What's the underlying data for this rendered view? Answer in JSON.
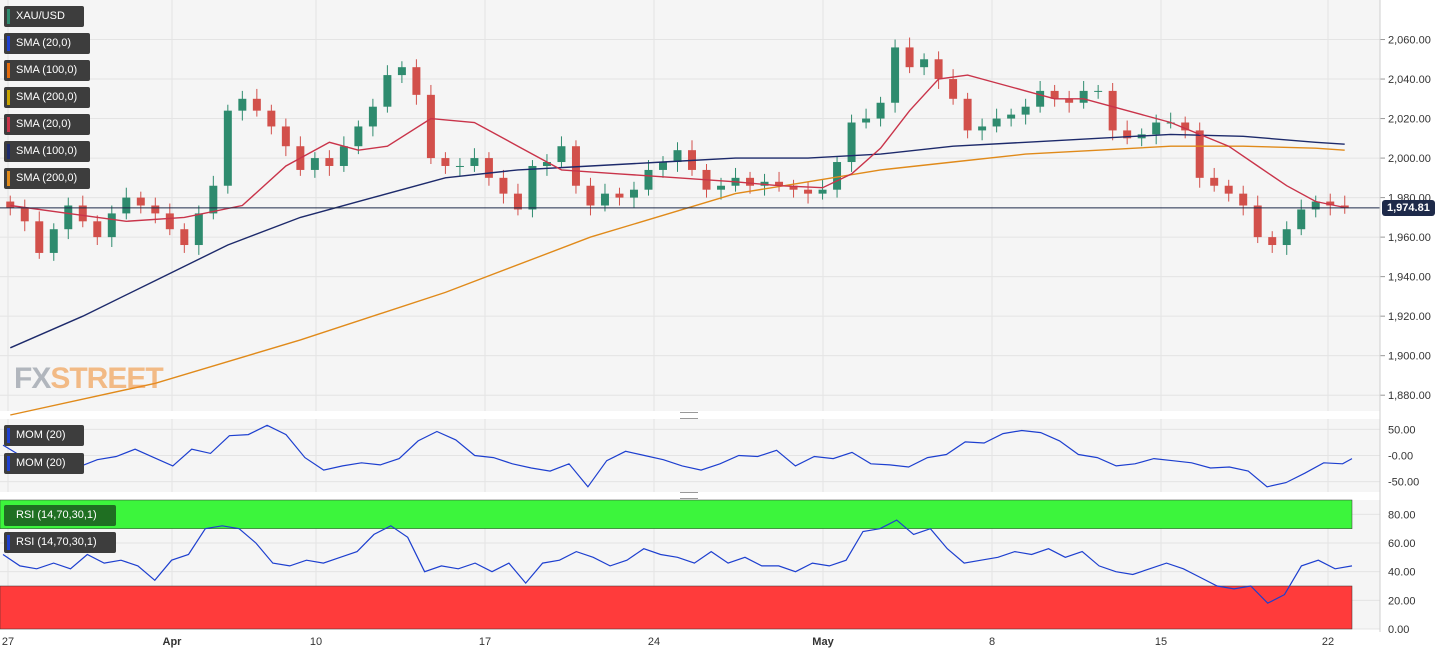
{
  "symbol": "XAU/USD",
  "last_price_label": "1,974.81",
  "watermark": {
    "fx": "FX",
    "street": "STREET"
  },
  "legends": {
    "main": [
      {
        "label": "SMA (20,0)",
        "color": "#1d3fcf"
      },
      {
        "label": "SMA (100,0)",
        "color": "#e36b0c"
      },
      {
        "label": "SMA (200,0)",
        "color": "#c8a400"
      },
      {
        "label": "SMA (20,0)",
        "color": "#c9344a"
      },
      {
        "label": "SMA (100,0)",
        "color": "#1d2a6b"
      },
      {
        "label": "SMA (200,0)",
        "color": "#e08a1a"
      }
    ],
    "mom": [
      {
        "label": "MOM (20)",
        "color": "#1d3fcf"
      },
      {
        "label": "MOM (20)",
        "color": "#1d3fcf"
      }
    ],
    "rsi": [
      {
        "label": "RSI (14,70,30,1)",
        "color": "#1f6f22"
      },
      {
        "label": "RSI (14,70,30,1)",
        "color": "#1d3fcf"
      }
    ]
  },
  "colors": {
    "up": "#2e8b6e",
    "down": "#d2504b",
    "sma20": "#c9344a",
    "sma100": "#1d2a6b",
    "sma200": "#e08a1a",
    "indicator": "#1d3fcf",
    "rsi_overbought_band": "#3cf53c",
    "rsi_oversold_band": "#ff3b3b",
    "price_line": "#1e2a4a"
  },
  "chart_data": {
    "type": "candlestick",
    "title": "XAU/USD",
    "x_tick_labels": [
      "27",
      "Apr",
      "10",
      "17",
      "24",
      "May",
      "8",
      "15",
      "22"
    ],
    "price_axis": {
      "ylim": [
        1872,
        2080
      ],
      "ticks": [
        1880,
        1900,
        1920,
        1940,
        1960,
        1980,
        2000,
        2020,
        2040,
        2060
      ],
      "tick_labels": [
        "1,880.00",
        "1,900.00",
        "1,920.00",
        "1,940.00",
        "1,960.00",
        "1,980.00",
        "2,000.00",
        "2,020.00",
        "2,040.00",
        "2,060.00"
      ]
    },
    "last_price": 1974.81,
    "close_series": [
      [
        0,
        1975
      ],
      [
        1,
        1968
      ],
      [
        2,
        1952
      ],
      [
        3,
        1964
      ],
      [
        4,
        1976
      ],
      [
        5,
        1968
      ],
      [
        6,
        1960
      ],
      [
        7,
        1972
      ],
      [
        8,
        1980
      ],
      [
        9,
        1976
      ],
      [
        10,
        1972
      ],
      [
        11,
        1964
      ],
      [
        12,
        1956
      ],
      [
        13,
        1972
      ],
      [
        14,
        1986
      ],
      [
        15,
        2024
      ],
      [
        16,
        2030
      ],
      [
        17,
        2024
      ],
      [
        18,
        2016
      ],
      [
        19,
        2006
      ],
      [
        20,
        1994
      ],
      [
        21,
        2000
      ],
      [
        22,
        1996
      ],
      [
        23,
        2006
      ],
      [
        24,
        2016
      ],
      [
        25,
        2026
      ],
      [
        26,
        2042
      ],
      [
        27,
        2046
      ],
      [
        28,
        2032
      ],
      [
        29,
        2000
      ],
      [
        30,
        1996
      ],
      [
        31,
        1996
      ],
      [
        32,
        2000
      ],
      [
        33,
        1990
      ],
      [
        34,
        1982
      ],
      [
        35,
        1974
      ],
      [
        36,
        1996
      ],
      [
        37,
        1998
      ],
      [
        38,
        2006
      ],
      [
        39,
        1986
      ],
      [
        40,
        1976
      ],
      [
        41,
        1982
      ],
      [
        42,
        1980
      ],
      [
        43,
        1984
      ],
      [
        44,
        1994
      ],
      [
        45,
        1998
      ],
      [
        46,
        2004
      ],
      [
        47,
        1994
      ],
      [
        48,
        1984
      ],
      [
        49,
        1986
      ],
      [
        50,
        1990
      ],
      [
        51,
        1986
      ],
      [
        52,
        1988
      ],
      [
        53,
        1986
      ],
      [
        54,
        1984
      ],
      [
        55,
        1982
      ],
      [
        56,
        1984
      ],
      [
        57,
        1998
      ],
      [
        58,
        2018
      ],
      [
        59,
        2020
      ],
      [
        60,
        2028
      ],
      [
        61,
        2056
      ],
      [
        62,
        2046
      ],
      [
        63,
        2050
      ],
      [
        64,
        2040
      ],
      [
        65,
        2030
      ],
      [
        66,
        2014
      ],
      [
        67,
        2016
      ],
      [
        68,
        2020
      ],
      [
        69,
        2022
      ],
      [
        70,
        2026
      ],
      [
        71,
        2034
      ],
      [
        72,
        2030
      ],
      [
        73,
        2028
      ],
      [
        74,
        2034
      ],
      [
        75,
        2034
      ],
      [
        76,
        2014
      ],
      [
        77,
        2010
      ],
      [
        78,
        2012
      ],
      [
        79,
        2018
      ],
      [
        80,
        2018
      ],
      [
        81,
        2014
      ],
      [
        82,
        1990
      ],
      [
        83,
        1986
      ],
      [
        84,
        1982
      ],
      [
        85,
        1976
      ],
      [
        86,
        1960
      ],
      [
        87,
        1956
      ],
      [
        88,
        1964
      ],
      [
        89,
        1974
      ],
      [
        90,
        1978
      ],
      [
        91,
        1976
      ],
      [
        92,
        1974.81
      ]
    ],
    "sma20": [
      [
        0,
        1976
      ],
      [
        4,
        1972
      ],
      [
        8,
        1968
      ],
      [
        12,
        1970
      ],
      [
        16,
        1976
      ],
      [
        19,
        1996
      ],
      [
        22,
        2008
      ],
      [
        24,
        2004
      ],
      [
        26,
        2006
      ],
      [
        29,
        2020
      ],
      [
        32,
        2018
      ],
      [
        35,
        2006
      ],
      [
        38,
        1994
      ],
      [
        42,
        1992
      ],
      [
        46,
        1990
      ],
      [
        50,
        1988
      ],
      [
        53,
        1986
      ],
      [
        56,
        1985
      ],
      [
        58,
        1992
      ],
      [
        60,
        2005
      ],
      [
        62,
        2024
      ],
      [
        64,
        2040
      ],
      [
        66,
        2042
      ],
      [
        68,
        2038
      ],
      [
        70,
        2034
      ],
      [
        72,
        2030
      ],
      [
        74,
        2030
      ],
      [
        76,
        2026
      ],
      [
        78,
        2022
      ],
      [
        80,
        2018
      ],
      [
        82,
        2012
      ],
      [
        84,
        2006
      ],
      [
        86,
        1996
      ],
      [
        88,
        1986
      ],
      [
        90,
        1978
      ],
      [
        92,
        1975
      ]
    ],
    "sma100": [
      [
        0,
        1904
      ],
      [
        5,
        1920
      ],
      [
        10,
        1938
      ],
      [
        15,
        1956
      ],
      [
        20,
        1970
      ],
      [
        25,
        1980
      ],
      [
        30,
        1990
      ],
      [
        35,
        1994
      ],
      [
        40,
        1996
      ],
      [
        45,
        1998
      ],
      [
        50,
        2000
      ],
      [
        55,
        2000
      ],
      [
        60,
        2002
      ],
      [
        65,
        2006
      ],
      [
        70,
        2008
      ],
      [
        75,
        2010
      ],
      [
        80,
        2012
      ],
      [
        85,
        2011
      ],
      [
        90,
        2008
      ],
      [
        92,
        2007
      ]
    ],
    "sma200": [
      [
        0,
        1870
      ],
      [
        10,
        1886
      ],
      [
        20,
        1908
      ],
      [
        30,
        1932
      ],
      [
        40,
        1960
      ],
      [
        50,
        1982
      ],
      [
        55,
        1988
      ],
      [
        60,
        1994
      ],
      [
        65,
        1998
      ],
      [
        70,
        2002
      ],
      [
        75,
        2004
      ],
      [
        80,
        2006
      ],
      [
        85,
        2006
      ],
      [
        90,
        2005
      ],
      [
        92,
        2004
      ]
    ],
    "momentum": {
      "ylim": [
        -70,
        70
      ],
      "ticks": [
        50,
        0,
        -50
      ],
      "tick_labels": [
        "50.00",
        "-0.00",
        "-50.00"
      ],
      "values": [
        [
          0,
          20
        ],
        [
          2,
          -2
        ],
        [
          4,
          -20
        ],
        [
          6,
          -28
        ],
        [
          8,
          -22
        ],
        [
          10,
          -8
        ],
        [
          12,
          -2
        ],
        [
          14,
          12
        ],
        [
          16,
          -4
        ],
        [
          18,
          -20
        ],
        [
          20,
          12
        ],
        [
          22,
          4
        ],
        [
          24,
          38
        ],
        [
          26,
          40
        ],
        [
          28,
          58
        ],
        [
          30,
          40
        ],
        [
          32,
          -4
        ],
        [
          34,
          -28
        ],
        [
          36,
          -20
        ],
        [
          38,
          -14
        ],
        [
          40,
          -18
        ],
        [
          42,
          -6
        ],
        [
          44,
          28
        ],
        [
          46,
          46
        ],
        [
          48,
          30
        ],
        [
          50,
          0
        ],
        [
          52,
          -4
        ],
        [
          54,
          -16
        ],
        [
          56,
          -24
        ],
        [
          58,
          -30
        ],
        [
          60,
          -16
        ],
        [
          62,
          -60
        ],
        [
          64,
          -10
        ],
        [
          66,
          8
        ],
        [
          68,
          0
        ],
        [
          70,
          -8
        ],
        [
          72,
          -20
        ],
        [
          74,
          -28
        ],
        [
          76,
          -16
        ],
        [
          78,
          0
        ],
        [
          80,
          -2
        ],
        [
          82,
          10
        ],
        [
          84,
          -20
        ],
        [
          86,
          -2
        ],
        [
          88,
          -6
        ],
        [
          90,
          6
        ],
        [
          92,
          -16
        ],
        [
          94,
          -18
        ],
        [
          96,
          -22
        ],
        [
          98,
          -4
        ],
        [
          100,
          2
        ],
        [
          102,
          26
        ],
        [
          104,
          24
        ],
        [
          106,
          42
        ],
        [
          108,
          48
        ],
        [
          110,
          44
        ],
        [
          112,
          28
        ],
        [
          114,
          2
        ],
        [
          116,
          -4
        ],
        [
          118,
          -20
        ],
        [
          120,
          -16
        ],
        [
          122,
          -6
        ],
        [
          124,
          -10
        ],
        [
          126,
          -14
        ],
        [
          128,
          -24
        ],
        [
          130,
          -22
        ],
        [
          132,
          -30
        ],
        [
          134,
          -60
        ],
        [
          136,
          -52
        ],
        [
          138,
          -34
        ],
        [
          140,
          -14
        ],
        [
          142,
          -16
        ],
        [
          143,
          -6
        ]
      ]
    },
    "rsi": {
      "ylim": [
        0,
        90
      ],
      "ticks": [
        80,
        60,
        40,
        20,
        0
      ],
      "tick_labels": [
        "80.00",
        "60.00",
        "40.00",
        "20.00",
        "0.00"
      ],
      "overbought": 70,
      "oversold": 30,
      "values": [
        [
          0,
          52
        ],
        [
          2,
          44
        ],
        [
          4,
          42
        ],
        [
          6,
          46
        ],
        [
          8,
          42
        ],
        [
          10,
          52
        ],
        [
          12,
          46
        ],
        [
          14,
          48
        ],
        [
          16,
          44
        ],
        [
          18,
          34
        ],
        [
          20,
          48
        ],
        [
          22,
          52
        ],
        [
          24,
          70
        ],
        [
          26,
          72
        ],
        [
          28,
          70
        ],
        [
          30,
          60
        ],
        [
          32,
          46
        ],
        [
          34,
          44
        ],
        [
          36,
          48
        ],
        [
          38,
          46
        ],
        [
          40,
          50
        ],
        [
          42,
          54
        ],
        [
          44,
          66
        ],
        [
          46,
          72
        ],
        [
          48,
          64
        ],
        [
          50,
          40
        ],
        [
          52,
          44
        ],
        [
          54,
          42
        ],
        [
          56,
          46
        ],
        [
          58,
          40
        ],
        [
          60,
          46
        ],
        [
          62,
          32
        ],
        [
          64,
          46
        ],
        [
          66,
          48
        ],
        [
          68,
          54
        ],
        [
          70,
          50
        ],
        [
          72,
          44
        ],
        [
          74,
          48
        ],
        [
          76,
          56
        ],
        [
          78,
          52
        ],
        [
          80,
          50
        ],
        [
          82,
          46
        ],
        [
          84,
          54
        ],
        [
          86,
          46
        ],
        [
          88,
          50
        ],
        [
          90,
          44
        ],
        [
          92,
          44
        ],
        [
          94,
          40
        ],
        [
          96,
          46
        ],
        [
          98,
          44
        ],
        [
          100,
          48
        ],
        [
          102,
          68
        ],
        [
          104,
          70
        ],
        [
          106,
          76
        ],
        [
          108,
          66
        ],
        [
          110,
          70
        ],
        [
          112,
          56
        ],
        [
          114,
          46
        ],
        [
          116,
          48
        ],
        [
          118,
          50
        ],
        [
          120,
          54
        ],
        [
          122,
          52
        ],
        [
          124,
          56
        ],
        [
          126,
          50
        ],
        [
          128,
          54
        ],
        [
          130,
          44
        ],
        [
          132,
          40
        ],
        [
          134,
          38
        ],
        [
          136,
          42
        ],
        [
          138,
          46
        ],
        [
          140,
          42
        ],
        [
          142,
          36
        ],
        [
          144,
          30
        ],
        [
          146,
          28
        ],
        [
          148,
          30
        ],
        [
          150,
          18
        ],
        [
          152,
          24
        ],
        [
          154,
          44
        ],
        [
          156,
          48
        ],
        [
          158,
          42
        ],
        [
          160,
          44
        ]
      ]
    }
  }
}
